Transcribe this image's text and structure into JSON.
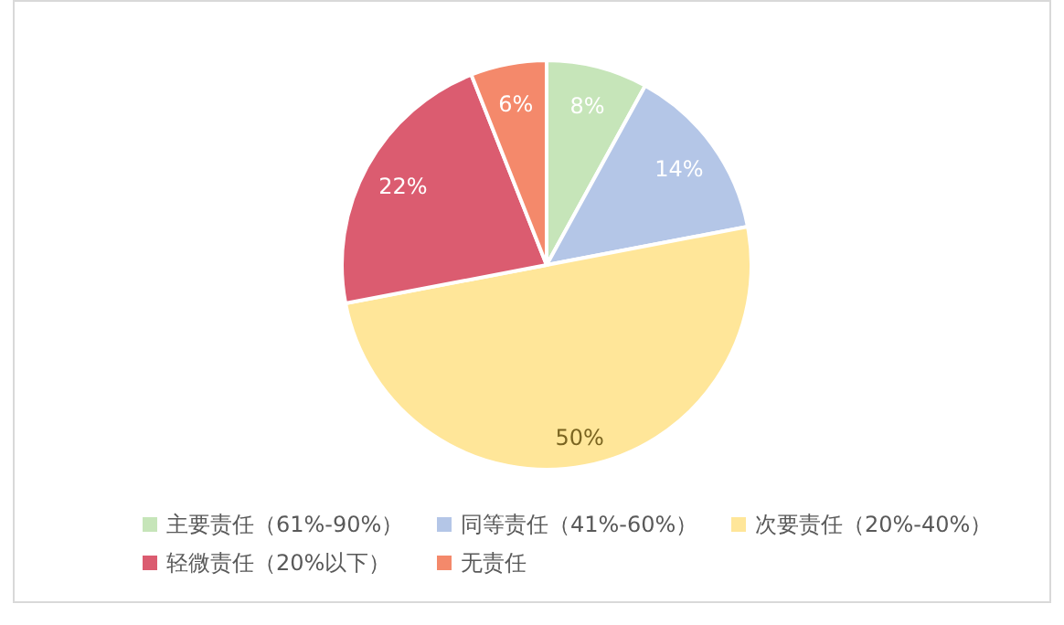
{
  "chart_data": {
    "type": "pie",
    "categories": [
      "主要责任（61%-90%）",
      "同等责任（41%-60%）",
      "次要责任（20%-40%）",
      "轻微责任（20%以下）",
      "无责任"
    ],
    "values": [
      8,
      14,
      50,
      22,
      6
    ],
    "colors": [
      "#c6e5b9",
      "#b4c6e7",
      "#ffe699",
      "#db5c70",
      "#f4896b"
    ],
    "value_labels": [
      "8%",
      "14%",
      "50%",
      "22%",
      "6%"
    ],
    "legend": "bottom"
  }
}
